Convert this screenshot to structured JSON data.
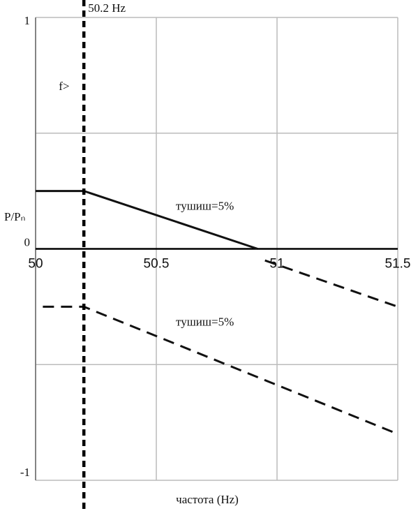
{
  "chart_data": {
    "type": "line",
    "xlabel": "частота (Hz)",
    "ylabel": "P/Pₙ",
    "xlim": [
      50,
      51.5
    ],
    "xticks": [
      50,
      50.5,
      51,
      51.5
    ],
    "ylim": [
      -1,
      1
    ],
    "yticks": [
      -1,
      0,
      1
    ],
    "ygrid": [
      -1,
      -0.5,
      0,
      0.5,
      1
    ],
    "grid": true,
    "vline": {
      "x": 50.2,
      "label": "50.2 Hz",
      "note": "f>"
    },
    "annotations": [
      "тушиш=5%",
      "тушиш=5%"
    ],
    "series": [
      {
        "color": "#111111",
        "dashed": false,
        "x": [
          50,
          50.2,
          50.92
        ],
        "values": [
          0.25,
          0.25,
          0
        ]
      },
      {
        "color": "#111111",
        "dashed": true,
        "x": [
          50.95,
          51.5
        ],
        "values": [
          -0.05,
          -0.25
        ]
      },
      {
        "color": "#111111",
        "dashed": true,
        "x": [
          50.03,
          50.2,
          51.5
        ],
        "values": [
          -0.25,
          -0.25,
          -0.8
        ]
      }
    ]
  }
}
